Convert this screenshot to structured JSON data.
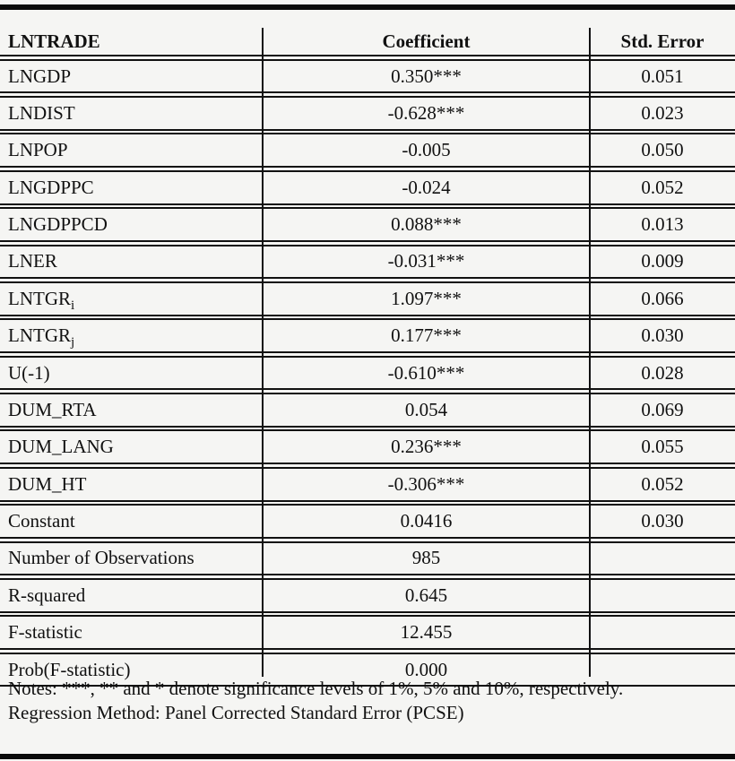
{
  "table": {
    "header": {
      "col1": "LNTRADE",
      "col2": "Coefficient",
      "col3": "Std. Error"
    },
    "rows": [
      {
        "label": "LNGDP",
        "label_sub": "",
        "coefficient": "0.350***",
        "std_error": "0.051"
      },
      {
        "label": "LNDIST",
        "label_sub": "",
        "coefficient": "-0.628***",
        "std_error": "0.023"
      },
      {
        "label": "LNPOP",
        "label_sub": "",
        "coefficient": "-0.005",
        "std_error": "0.050"
      },
      {
        "label": "LNGDPPC",
        "label_sub": "",
        "coefficient": "-0.024",
        "std_error": "0.052"
      },
      {
        "label": "LNGDPPCD",
        "label_sub": "",
        "coefficient": "0.088***",
        "std_error": "0.013"
      },
      {
        "label": "LNER",
        "label_sub": "",
        "coefficient": "-0.031***",
        "std_error": "0.009"
      },
      {
        "label": "LNTGR",
        "label_sub": "i",
        "coefficient": "1.097***",
        "std_error": "0.066"
      },
      {
        "label": "LNTGR",
        "label_sub": "j",
        "coefficient": "0.177***",
        "std_error": "0.030"
      },
      {
        "label": "U(-1)",
        "label_sub": "",
        "coefficient": "-0.610***",
        "std_error": "0.028"
      },
      {
        "label": "DUM_RTA",
        "label_sub": "",
        "coefficient": "0.054",
        "std_error": "0.069"
      },
      {
        "label": "DUM_LANG",
        "label_sub": "",
        "coefficient": "0.236***",
        "std_error": "0.055"
      },
      {
        "label": "DUM_HT",
        "label_sub": "",
        "coefficient": "-0.306***",
        "std_error": "0.052"
      },
      {
        "label": "Constant",
        "label_sub": "",
        "coefficient": "0.0416",
        "std_error": "0.030"
      },
      {
        "label": "Number of Observations",
        "label_sub": "",
        "coefficient": "985",
        "std_error": ""
      },
      {
        "label": "R-squared",
        "label_sub": "",
        "coefficient": "0.645",
        "std_error": ""
      },
      {
        "label": "F-statistic",
        "label_sub": "",
        "coefficient": "12.455",
        "std_error": ""
      },
      {
        "label": "Prob(F-statistic)",
        "label_sub": "",
        "coefficient": "0.000",
        "std_error": ""
      }
    ]
  },
  "notes": {
    "line1": "Notes: ***, ** and * denote significance levels of 1%, 5% and 10%, respectively.",
    "line2": "Regression Method: Panel Corrected Standard Error (PCSE)"
  },
  "colors": {
    "background": "#f5f5f3",
    "text": "#111111",
    "border": "#111111"
  }
}
